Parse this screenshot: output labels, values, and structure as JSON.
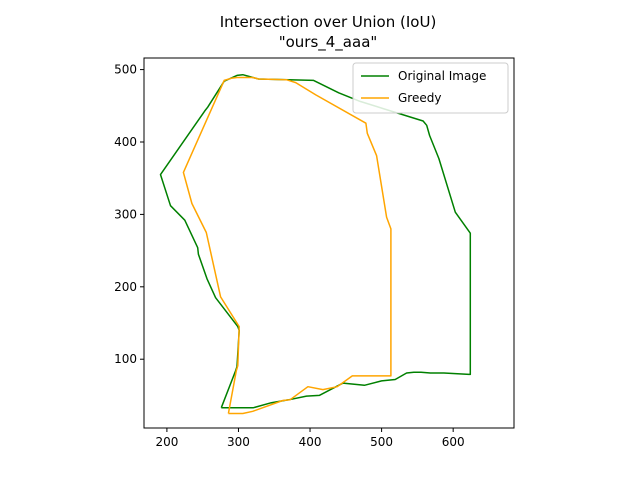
{
  "chart_data": {
    "type": "line",
    "title": "Intersection over Union (IoU)",
    "subtitle": "\"ours_4_aaa\"",
    "xlabel": "",
    "ylabel": "",
    "xlim": [
      168,
      685
    ],
    "ylim": [
      5,
      516
    ],
    "xticks": [
      200,
      300,
      400,
      500,
      600
    ],
    "yticks": [
      100,
      200,
      300,
      400,
      500
    ],
    "grid": false,
    "legend_position": "top-right",
    "series": [
      {
        "name": "Original Image",
        "color": "#008000",
        "points": [
          [
            276,
            33
          ],
          [
            285,
            33
          ],
          [
            297,
            33
          ],
          [
            307,
            33
          ],
          [
            321,
            33
          ],
          [
            346,
            40
          ],
          [
            370,
            44
          ],
          [
            395,
            49
          ],
          [
            413,
            50
          ],
          [
            446,
            67
          ],
          [
            476,
            64
          ],
          [
            500,
            70
          ],
          [
            519,
            72
          ],
          [
            535,
            81
          ],
          [
            545,
            82
          ],
          [
            546,
            82
          ],
          [
            555,
            82
          ],
          [
            568,
            81
          ],
          [
            577,
            81
          ],
          [
            587,
            81
          ],
          [
            622,
            79
          ],
          [
            624,
            79
          ],
          [
            624,
            85
          ],
          [
            624,
            274
          ],
          [
            603,
            303
          ],
          [
            580,
            377
          ],
          [
            567,
            409
          ],
          [
            563,
            423
          ],
          [
            558,
            429
          ],
          [
            470,
            456
          ],
          [
            440,
            468
          ],
          [
            405,
            485
          ],
          [
            328,
            487
          ],
          [
            306,
            493
          ],
          [
            298,
            492
          ],
          [
            280,
            484
          ],
          [
            257,
            448
          ],
          [
            253,
            443
          ],
          [
            191,
            355
          ],
          [
            205,
            312
          ],
          [
            225,
            292
          ],
          [
            243,
            254
          ],
          [
            244,
            245
          ],
          [
            256,
            211
          ],
          [
            268,
            185
          ],
          [
            299,
            145
          ],
          [
            301,
            140
          ],
          [
            298,
            90
          ],
          [
            296,
            84
          ],
          [
            276,
            33
          ]
        ]
      },
      {
        "name": "Greedy",
        "color": "#FFA500",
        "points": [
          [
            286,
            25
          ],
          [
            295,
            25
          ],
          [
            306,
            25
          ],
          [
            320,
            28
          ],
          [
            362,
            43
          ],
          [
            372,
            44
          ],
          [
            397,
            62
          ],
          [
            418,
            58
          ],
          [
            438,
            62
          ],
          [
            459,
            77
          ],
          [
            488,
            77
          ],
          [
            513,
            77
          ],
          [
            513,
            280
          ],
          [
            507,
            296
          ],
          [
            493,
            381
          ],
          [
            480,
            412
          ],
          [
            478,
            426
          ],
          [
            408,
            465
          ],
          [
            380,
            482
          ],
          [
            367,
            486
          ],
          [
            328,
            487
          ],
          [
            320,
            489
          ],
          [
            298,
            489
          ],
          [
            290,
            488
          ],
          [
            280,
            485
          ],
          [
            223,
            358
          ],
          [
            235,
            315
          ],
          [
            255,
            275
          ],
          [
            275,
            186
          ],
          [
            301,
            145
          ],
          [
            299,
            91
          ],
          [
            297,
            84
          ],
          [
            286,
            25
          ]
        ]
      }
    ]
  }
}
